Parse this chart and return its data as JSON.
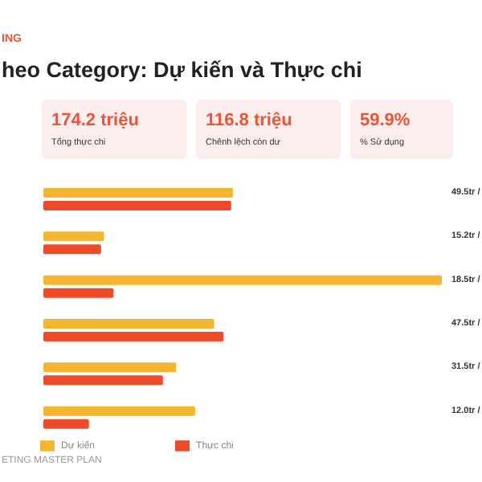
{
  "chart_data": {
    "type": "bar",
    "orientation": "horizontal",
    "subtitle": "ING",
    "title": "heo Category: Dự kiến và Thực chi",
    "categories": [
      null,
      null,
      null,
      null,
      null,
      null
    ],
    "series": [
      {
        "name": "Dự kiến",
        "color": "#f5b731",
        "values": [
          50,
          16,
          105,
          45,
          35,
          40
        ]
      },
      {
        "name": "Thực chi",
        "color": "#ee4b2b",
        "values": [
          49.5,
          15.2,
          18.5,
          47.5,
          31.5,
          12.0
        ],
        "value_labels": [
          "49.5tr /",
          "15.2tr /",
          "18.5tr /",
          "47.5tr /",
          "31.5tr /",
          "12.0tr /"
        ]
      }
    ],
    "legend": "bottom left",
    "annotations": [
      "174.2 triệu",
      "Tổng thực chi",
      "116.8 triệu",
      "Chênh lệch còn dư",
      "59.9%",
      "% Sử dụng",
      "ETING MASTER PLAN"
    ]
  }
}
